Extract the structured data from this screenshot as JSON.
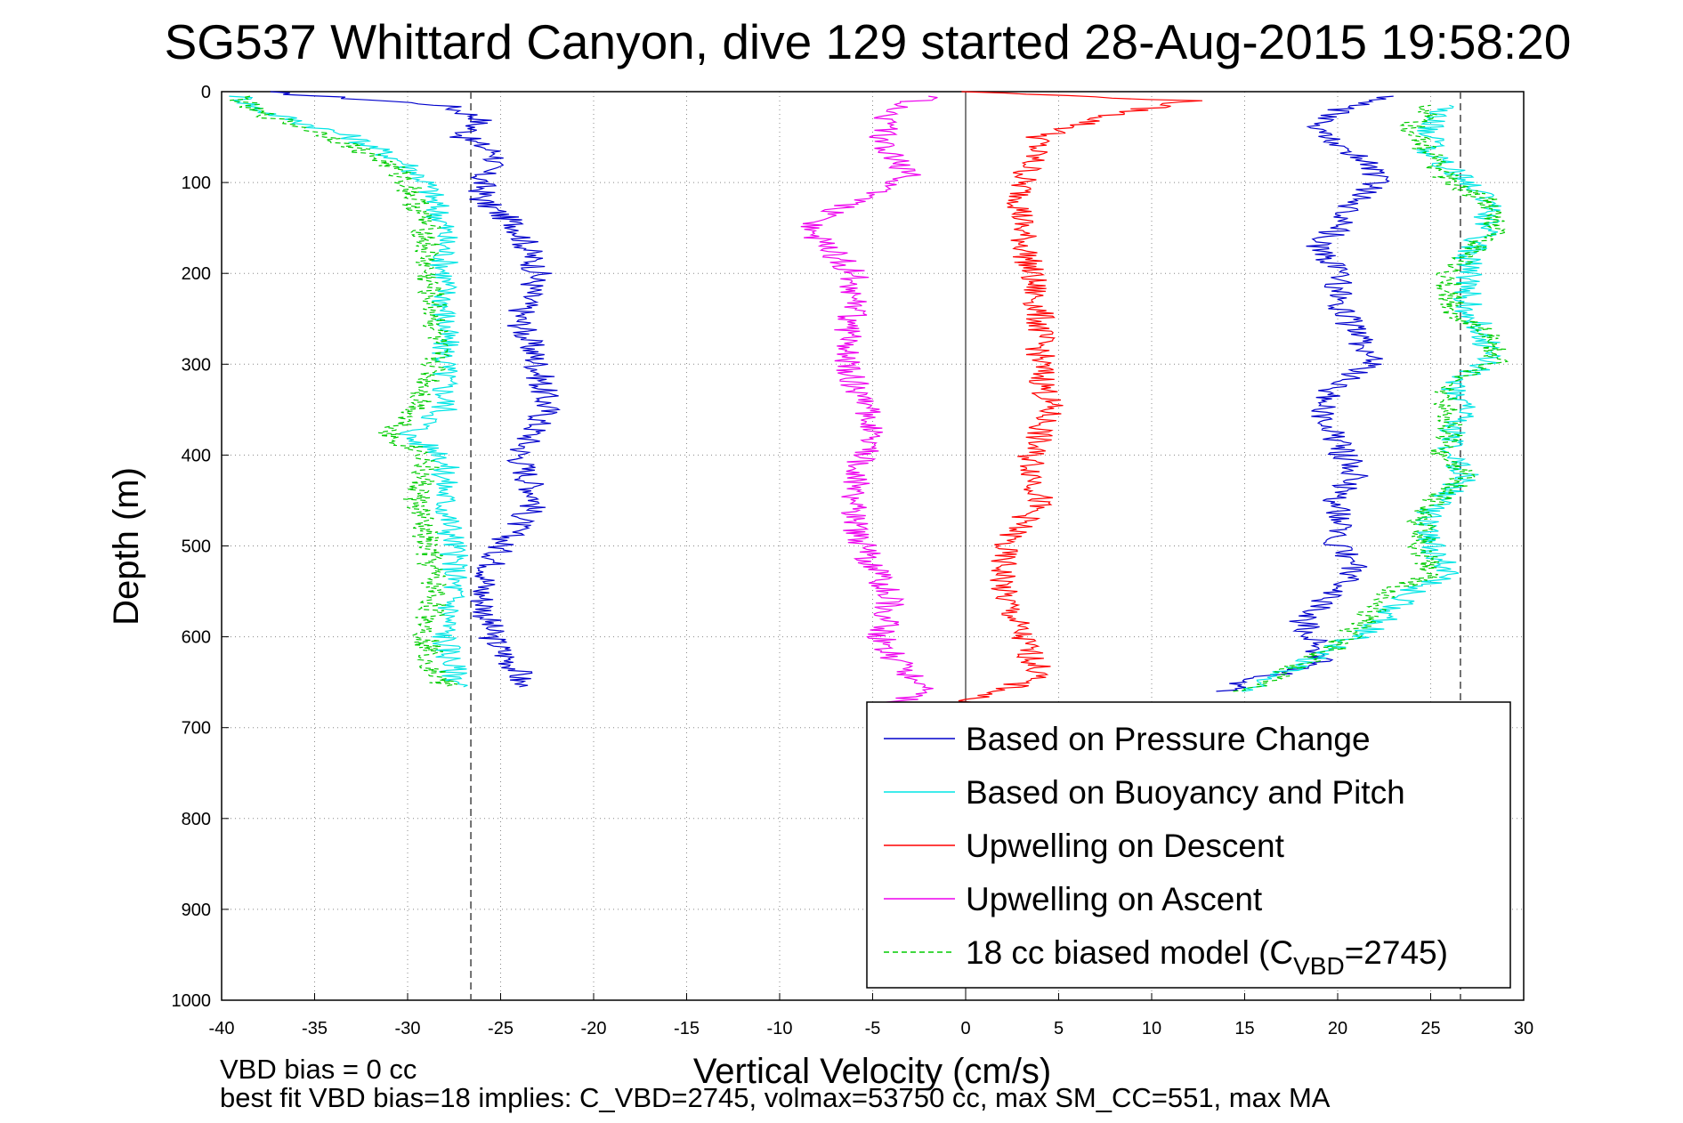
{
  "chart_data": {
    "type": "line",
    "title": "SG537 Whittard Canyon, dive 129 started 28-Aug-2015 19:58:20",
    "xlabel": "Vertical Velocity (cm/s)",
    "ylabel": "Depth (m)",
    "xlim": [
      -40,
      30
    ],
    "ylim": [
      0,
      1000
    ],
    "y_reversed": true,
    "xticks": [
      -40,
      -35,
      -30,
      -25,
      -20,
      -15,
      -10,
      -5,
      0,
      5,
      10,
      15,
      20,
      25,
      30
    ],
    "yticks": [
      0,
      100,
      200,
      300,
      400,
      500,
      600,
      700,
      800,
      900,
      1000
    ],
    "grid": true,
    "legend_placement": "bottom-right",
    "reference_lines": {
      "dashed_x": [
        -26.6,
        26.6
      ],
      "solid_x": 0
    },
    "series": [
      {
        "name": "Based on Pressure Change",
        "color": "#0000cc",
        "descent": {
          "depth": [
            0,
            15,
            30,
            50,
            70,
            90,
            120,
            150,
            200,
            250,
            300,
            350,
            400,
            450,
            500,
            550,
            600,
            640,
            655
          ],
          "velocity": [
            -38,
            -28,
            -26,
            -27,
            -25,
            -26,
            -26,
            -24,
            -23,
            -24,
            -23,
            -22.5,
            -24,
            -23,
            -25,
            -26,
            -25.5,
            -24,
            -24
          ]
        },
        "ascent": {
          "depth": [
            660,
            650,
            630,
            610,
            580,
            550,
            520,
            500,
            450,
            420,
            390,
            350,
            320,
            300,
            270,
            230,
            200,
            170,
            150,
            120,
            100,
            80,
            60,
            40,
            20,
            5
          ],
          "velocity": [
            14,
            15,
            19,
            19,
            18,
            20,
            21,
            20,
            20,
            21,
            20,
            19,
            20,
            22,
            21,
            20,
            20,
            19,
            20,
            21,
            22,
            22,
            20,
            19,
            20,
            23
          ]
        }
      },
      {
        "name": "Based on Buoyancy and Pitch",
        "color": "#00e5e5",
        "descent": {
          "depth": [
            5,
            20,
            50,
            80,
            100,
            150,
            200,
            250,
            300,
            350,
            380,
            400,
            450,
            500,
            550,
            600,
            640,
            655
          ],
          "velocity": [
            -39,
            -38,
            -33,
            -30,
            -29,
            -28,
            -28,
            -28,
            -28,
            -28,
            -30,
            -28,
            -28,
            -27.5,
            -27.5,
            -28,
            -27.5,
            -27
          ]
        },
        "ascent": {
          "depth": [
            660,
            640,
            610,
            590,
            570,
            550,
            530,
            500,
            460,
            440,
            420,
            400,
            380,
            350,
            320,
            300,
            270,
            240,
            200,
            180,
            150,
            120,
            100,
            70,
            40,
            15
          ],
          "velocity": [
            15,
            17,
            20,
            22,
            23,
            24,
            26,
            25,
            25,
            26,
            27,
            26,
            26,
            27,
            26,
            28,
            28,
            27,
            27,
            27,
            28,
            28,
            27,
            25,
            25,
            26
          ]
        }
      },
      {
        "name": "Upwelling on Descent",
        "color": "#ff0000",
        "depth": [
          0,
          10,
          25,
          50,
          80,
          100,
          150,
          200,
          250,
          300,
          350,
          400,
          450,
          500,
          550,
          600,
          640,
          660,
          675
        ],
        "velocity": [
          0,
          12,
          8,
          4,
          3.5,
          3,
          3,
          3.5,
          4,
          4,
          4.5,
          3.5,
          4,
          2,
          2,
          3,
          4,
          2,
          -1
        ]
      },
      {
        "name": "Upwelling on Ascent",
        "color": "#ee00ee",
        "depth": [
          675,
          660,
          640,
          620,
          600,
          560,
          520,
          480,
          440,
          400,
          360,
          320,
          280,
          240,
          200,
          170,
          150,
          130,
          110,
          90,
          70,
          50,
          20,
          5
        ],
        "velocity": [
          -4,
          -2,
          -3,
          -4,
          -4.5,
          -4,
          -5,
          -6,
          -6,
          -5.5,
          -5,
          -6,
          -6.5,
          -6,
          -6,
          -7.5,
          -8.5,
          -7,
          -5,
          -3,
          -4,
          -4.5,
          -4,
          -2
        ]
      },
      {
        "name": "18 cc biased model (C_VBD=2745)",
        "legend_text": "18 cc biased model (C",
        "legend_sub": "VBD",
        "legend_suffix": "=2745)",
        "color": "#00cc00",
        "descent": {
          "depth": [
            5,
            20,
            50,
            80,
            100,
            150,
            200,
            250,
            300,
            350,
            380,
            400,
            450,
            500,
            550,
            600,
            640,
            655
          ],
          "velocity": [
            -39,
            -38.5,
            -34,
            -31,
            -30,
            -29,
            -29,
            -28.5,
            -28.5,
            -29.5,
            -31,
            -29,
            -29.5,
            -29,
            -28.5,
            -29,
            -28.5,
            -28
          ]
        },
        "ascent": {
          "depth": [
            660,
            640,
            610,
            590,
            570,
            550,
            530,
            500,
            460,
            440,
            420,
            400,
            380,
            350,
            320,
            300,
            270,
            240,
            200,
            180,
            150,
            120,
            100,
            70,
            40,
            15
          ],
          "velocity": [
            15,
            17,
            20,
            21,
            22,
            23,
            25,
            24.5,
            24.5,
            26,
            27,
            25.5,
            26,
            26,
            25.5,
            28.5,
            28.5,
            26,
            26,
            27,
            28.5,
            28,
            26,
            25,
            24,
            25
          ]
        }
      }
    ]
  },
  "annotations": {
    "line1": "VBD bias = 0 cc",
    "line2": "best fit VBD bias=18 implies: C_VBD=2745, volmax=53750 cc, max SM_CC=551, max MA"
  }
}
